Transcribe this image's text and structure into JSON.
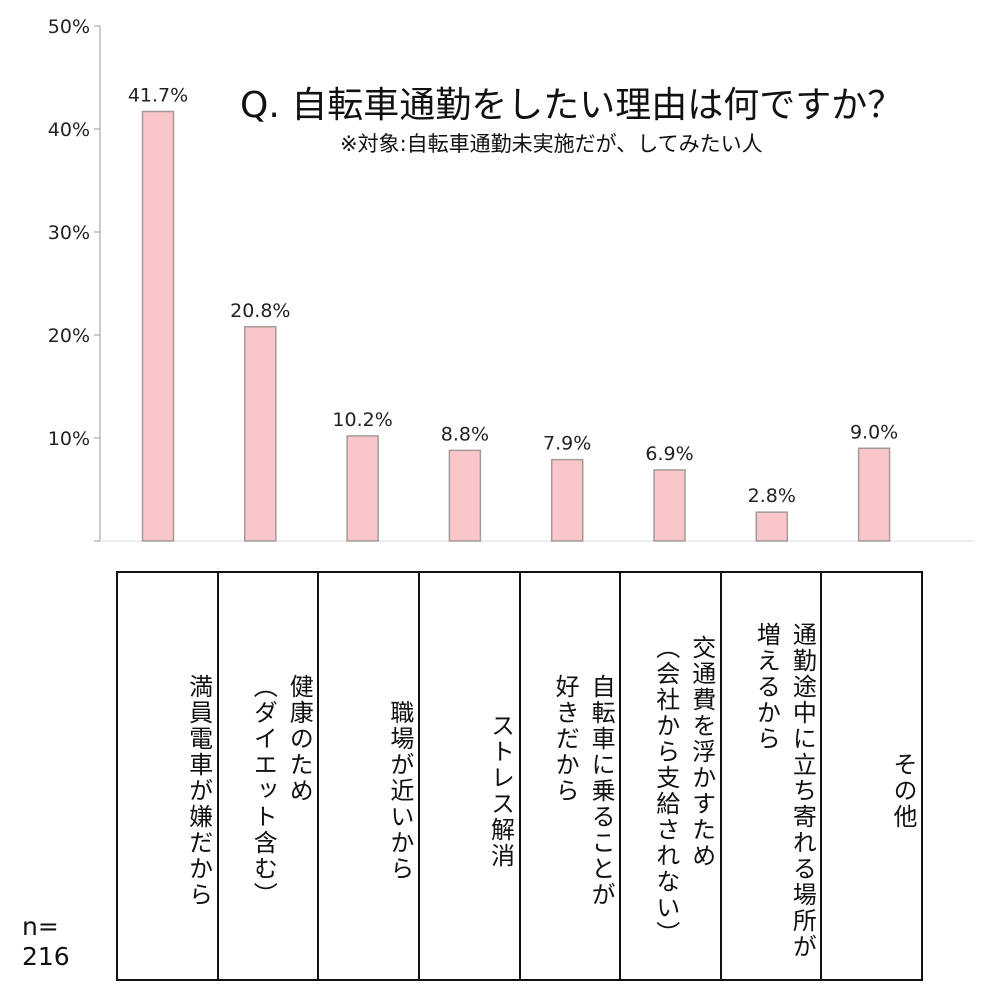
{
  "chart_data": {
    "type": "bar",
    "title": "Q. 自転車通勤をしたい理由は何ですか？",
    "subtitle": "※対象:自転車通勤未実施だが、してみたい人",
    "categories": [
      "満員電車が嫌だから",
      "健康のため\n（ダイエット含む）",
      "職場が近いから",
      "ストレス解消",
      "自転車に乗ることが\n好きだから",
      "交通費を浮かすため\n（会社から支給されない）",
      "通勤途中に立ち寄れる場所が\n増えるから",
      "その他"
    ],
    "values": [
      41.7,
      20.8,
      10.2,
      8.8,
      7.9,
      6.9,
      2.8,
      9.0
    ],
    "value_labels": [
      "41.7%",
      "20.8%",
      "10.2%",
      "8.8%",
      "7.9%",
      "6.9%",
      "2.8%",
      "9.0%"
    ],
    "y_ticks": [
      "10%",
      "20%",
      "30%",
      "40%",
      "50%"
    ],
    "y_tick_values": [
      10,
      20,
      30,
      40,
      50
    ],
    "ylim": [
      0,
      50
    ],
    "xlabel": "",
    "ylabel": "",
    "grid": false,
    "legend": "none",
    "bar_color": "#f9c6c9",
    "bar_border_color": "#a59a9a",
    "axis_color": "#999999"
  },
  "sample_size": "n=\n216"
}
